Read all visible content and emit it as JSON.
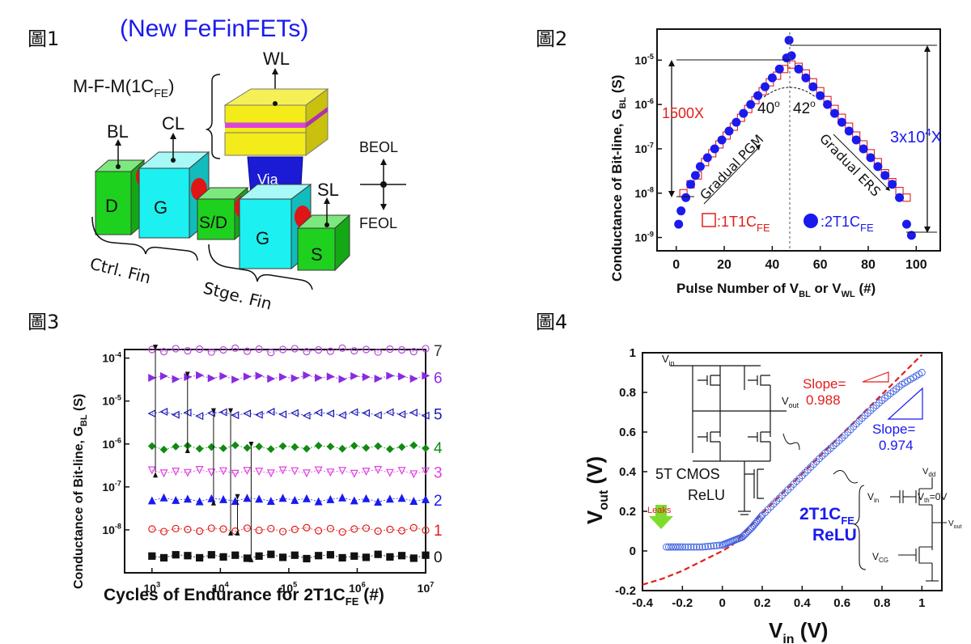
{
  "panels": {
    "fig1_label": "圖1",
    "fig2_label": "圖2",
    "fig3_label": "圖3",
    "fig4_label": "圖4"
  },
  "fig1": {
    "title": "(New FeFinFETs)",
    "wl": "WL",
    "mfm": "M-F-M(1C",
    "mfm_sub": "FE",
    "mfm_close": ")",
    "bl": "BL",
    "cl": "CL",
    "beol": "BEOL",
    "feol": "FEOL",
    "via": "Via",
    "sl": "SL",
    "d": "D",
    "g1": "G",
    "sd": "S/D",
    "g2": "G",
    "s": "S",
    "ctrl_fin": "Ctrl. Fin",
    "stge_fin": "Stge. Fin"
  },
  "fig2": {
    "ylabel": "Conductance of Bit-line, G",
    "ylabel_sub": "BL",
    "ylabel_unit": " (S)",
    "xlabel": "Pulse Number of V",
    "xlabel_sub1": "BL",
    "xlabel_mid": " or V",
    "xlabel_sub2": "WL",
    "xlabel_unit": " (#)",
    "ratio_left": "1500X",
    "ratio_right_base": "3x10",
    "ratio_right_exp": "4",
    "ratio_right_tail": "X",
    "angle_left": "40",
    "angle_right": "42",
    "angle_mark": "o",
    "gradual_pgm": "Gradual PGM",
    "gradual_ers": "Gradual ERS",
    "legend_1t1c": ":1T1C",
    "legend_2t1c": ":2T1C",
    "legend_sub": "FE",
    "colors": {
      "red": "#e0201c",
      "blue": "#1a1aee"
    }
  },
  "fig3": {
    "ylabel": "Conductance of Bit-line, G",
    "ylabel_sub": "BL",
    "ylabel_unit": " (S)",
    "xlabel": "Cycles of Endurance for 2T1C",
    "xlabel_sub": "FE",
    "xlabel_unit": " (#)",
    "levels": [
      {
        "label": "7",
        "color": "#b84adb",
        "marker": "circle-open"
      },
      {
        "label": "6",
        "color": "#8a2be2",
        "marker": "tri-right-filled"
      },
      {
        "label": "5",
        "color": "#1a1ab8",
        "marker": "tri-left-open"
      },
      {
        "label": "4",
        "color": "#138a13",
        "marker": "diamond-filled"
      },
      {
        "label": "3",
        "color": "#e040e0",
        "marker": "tri-down-open"
      },
      {
        "label": "2",
        "color": "#1a1aee",
        "marker": "tri-up-filled"
      },
      {
        "label": "1",
        "color": "#e0201c",
        "marker": "circle-open"
      },
      {
        "label": "0",
        "color": "#111111",
        "marker": "square-filled"
      }
    ]
  },
  "fig4": {
    "ylabel": "V",
    "ylabel_sub": "out",
    "ylabel_unit": " (V)",
    "xlabel": "V",
    "xlabel_sub": "in",
    "xlabel_unit": " (V)",
    "vin": "V",
    "vin_sub": "in",
    "vout": "V",
    "vout_sub": "out",
    "cmos_label1": "5T CMOS",
    "cmos_label2": "ReLU",
    "slope_red1": "Slope=",
    "slope_red2": "0.988",
    "slope_blue1": "Slope=",
    "slope_blue2": "0.974",
    "relu1": "2T1C",
    "relu1_sub": "FE",
    "relu2": "ReLU",
    "leaks": "Leaks",
    "vdd": "V",
    "vdd_sub": "dd",
    "vin2": "V",
    "vin2_sub": "in",
    "vth": "V",
    "vth_sub": "th",
    "vth_tail": "=0V",
    "vout2": "V",
    "vout2_sub": "out",
    "vcg": "V",
    "vcg_sub": "CG"
  },
  "chart_data": [
    {
      "type": "scatter",
      "title": "",
      "xlabel": "Pulse Number of V_BL or V_WL (#)",
      "ylabel": "Conductance of Bit-line, G_BL (S)",
      "xlim": [
        -8,
        110
      ],
      "ylim_log10": [
        -9.3,
        -4.3
      ],
      "xticks": [
        0,
        20,
        40,
        60,
        80,
        100
      ],
      "yticks_exp": [
        -9,
        -8,
        -7,
        -6,
        -5
      ],
      "series": [
        {
          "name": "1T1C_FE",
          "marker": "square-open",
          "color": "#e0201c",
          "x": [
            3,
            6,
            9,
            12,
            15,
            18,
            21,
            24,
            27,
            30,
            33,
            36,
            39,
            42,
            45,
            48,
            51,
            54,
            57,
            60,
            63,
            66,
            69,
            72,
            75,
            78,
            81,
            84,
            87,
            90,
            93,
            96
          ],
          "log10y": [
            -8.0,
            -7.8,
            -7.6,
            -7.3,
            -7.1,
            -6.9,
            -6.7,
            -6.5,
            -6.3,
            -6.1,
            -5.9,
            -5.7,
            -5.5,
            -5.35,
            -5.2,
            -5.1,
            -5.15,
            -5.3,
            -5.5,
            -5.7,
            -5.9,
            -6.1,
            -6.3,
            -6.5,
            -6.7,
            -6.9,
            -7.1,
            -7.3,
            -7.55,
            -7.75,
            -7.95,
            -8.1
          ]
        },
        {
          "name": "2T1C_FE",
          "marker": "circle-filled",
          "color": "#1a1aee",
          "x": [
            1,
            2,
            4,
            6,
            8,
            10,
            13,
            16,
            19,
            22,
            25,
            28,
            31,
            34,
            37,
            40,
            43,
            46,
            47,
            48,
            51,
            54,
            57,
            60,
            63,
            66,
            69,
            72,
            75,
            78,
            81,
            84,
            87,
            90,
            93,
            96,
            98
          ],
          "log10y": [
            -8.7,
            -8.4,
            -8.1,
            -7.8,
            -7.6,
            -7.4,
            -7.2,
            -7.0,
            -6.8,
            -6.6,
            -6.4,
            -6.2,
            -6.0,
            -5.8,
            -5.6,
            -5.4,
            -5.2,
            -4.95,
            -4.55,
            -4.9,
            -5.2,
            -5.4,
            -5.6,
            -5.8,
            -6.0,
            -6.2,
            -6.4,
            -6.6,
            -6.8,
            -7.0,
            -7.2,
            -7.4,
            -7.6,
            -7.8,
            -8.1,
            -8.7,
            -8.95
          ]
        }
      ]
    },
    {
      "type": "scatter",
      "title": "",
      "xlabel": "Cycles of Endurance for 2T1C_FE (#)",
      "ylabel": "Conductance of Bit-line, G_BL (S)",
      "xlim_log10": [
        2.6,
        7.0
      ],
      "ylim_log10": [
        -9.0,
        -3.8
      ],
      "xticks_exp": [
        3,
        4,
        5,
        6,
        7
      ],
      "yticks_exp": [
        -8,
        -7,
        -6,
        -5,
        -4
      ],
      "series": [
        {
          "name": "7",
          "log10y": -3.82
        },
        {
          "name": "6",
          "log10y": -4.45
        },
        {
          "name": "5",
          "log10y": -5.3
        },
        {
          "name": "4",
          "log10y": -6.08
        },
        {
          "name": "3",
          "log10y": -6.65
        },
        {
          "name": "2",
          "log10y": -7.3
        },
        {
          "name": "1",
          "log10y": -8.0
        },
        {
          "name": "0",
          "log10y": -8.62
        }
      ]
    },
    {
      "type": "line",
      "title": "",
      "xlabel": "V_in (V)",
      "ylabel": "V_out (V)",
      "xlim": [
        -0.4,
        1.1
      ],
      "ylim": [
        -0.2,
        1.0
      ],
      "xticks": [
        -0.4,
        -0.2,
        0,
        0.2,
        0.4,
        0.6,
        0.8,
        1
      ],
      "yticks": [
        -0.2,
        0,
        0.2,
        0.4,
        0.6,
        0.8,
        1
      ],
      "series": [
        {
          "name": "5T CMOS ReLU",
          "style": "dashed",
          "color": "#e0201c",
          "x": [
            -0.4,
            -0.3,
            -0.2,
            -0.1,
            0.0,
            0.05,
            0.1,
            0.2,
            0.4,
            0.6,
            0.8,
            1.0
          ],
          "y": [
            -0.17,
            -0.14,
            -0.1,
            -0.05,
            0.0,
            0.03,
            0.08,
            0.19,
            0.39,
            0.59,
            0.79,
            0.99
          ]
        },
        {
          "name": "2T1C_FE ReLU",
          "style": "circles",
          "color": "#3b5fe0",
          "x": [
            -0.28,
            -0.2,
            -0.1,
            0.0,
            0.05,
            0.1,
            0.15,
            0.2,
            0.3,
            0.4,
            0.5,
            0.6,
            0.7,
            0.8,
            0.9,
            1.0
          ],
          "y": [
            0.02,
            0.02,
            0.02,
            0.03,
            0.05,
            0.07,
            0.12,
            0.18,
            0.28,
            0.38,
            0.48,
            0.57,
            0.67,
            0.76,
            0.84,
            0.9
          ]
        }
      ]
    }
  ]
}
